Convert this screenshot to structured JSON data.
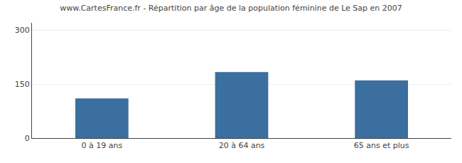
{
  "chart_data": {
    "type": "bar",
    "title": "www.CartesFrance.fr - Répartition par âge de la population féminine de Le Sap en 2007",
    "categories": [
      "0 à 19 ans",
      "20 à 64 ans",
      "65 ans et plus"
    ],
    "values": [
      110,
      183,
      160
    ],
    "color": "#3a6f9f",
    "ylim": [
      0,
      320
    ],
    "yticks": [
      0,
      150,
      300
    ],
    "grid": true
  }
}
